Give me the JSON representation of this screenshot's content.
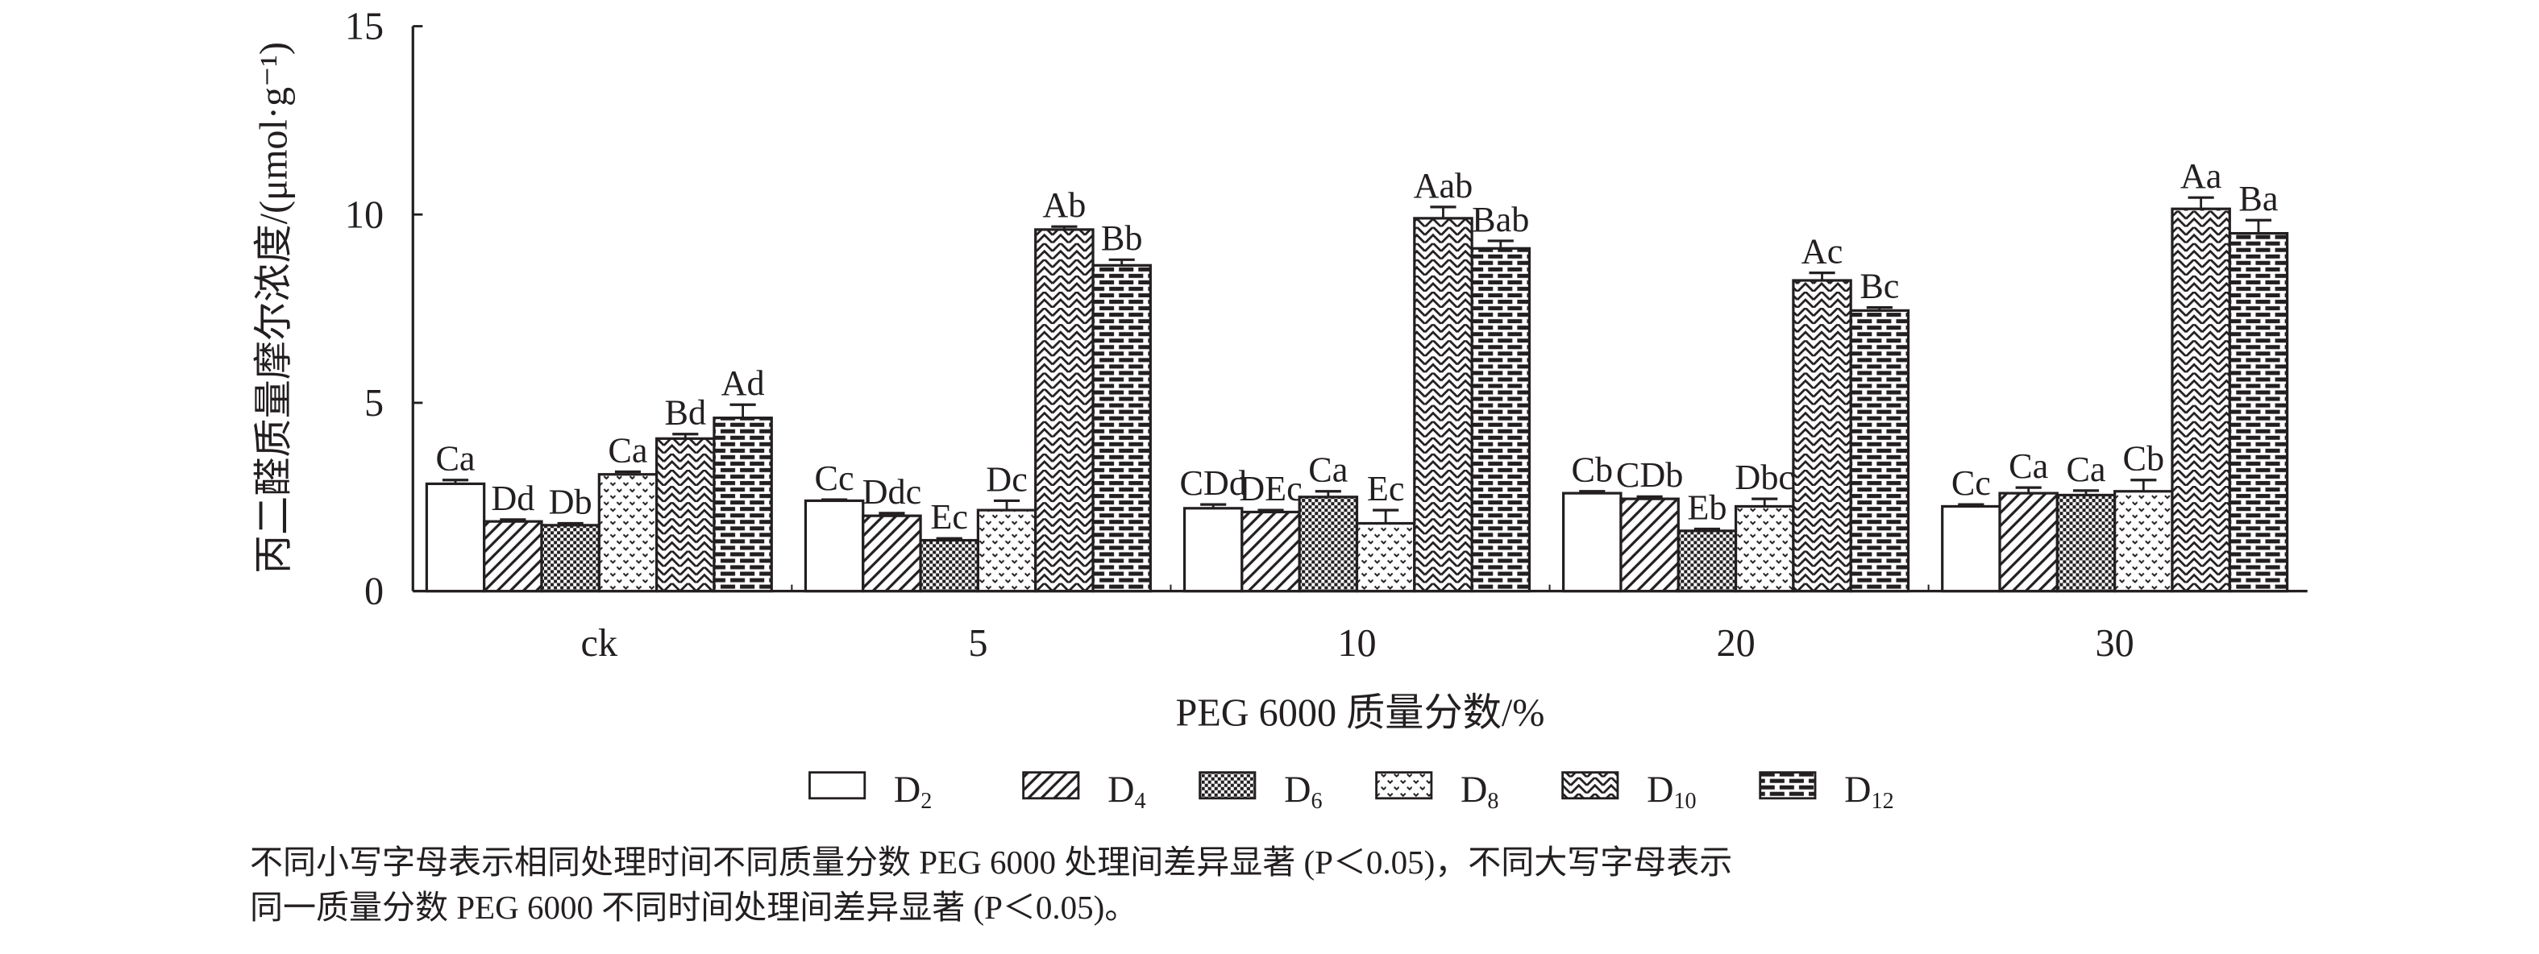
{
  "chart_data": {
    "type": "bar",
    "title": "",
    "xlabel": "PEG 6000 质量分数/%",
    "ylabel": "丙二醛质量摩尔浓度/(μmol·g⁻¹)",
    "ylim": [
      0,
      15
    ],
    "yticks": [
      "0",
      "5",
      "10",
      "15"
    ],
    "yticks_values": [
      0,
      5,
      10,
      15
    ],
    "grid": false,
    "legend_position": "bottom",
    "categories": [
      "ck",
      "5",
      "10",
      "20",
      "30"
    ],
    "series": [
      {
        "name": "D2",
        "base": "D",
        "sub": "2",
        "pattern": "open",
        "values": [
          2.85,
          2.4,
          2.2,
          2.6,
          2.25
        ],
        "errors": [
          0.1,
          0.03,
          0.1,
          0.05,
          0.05
        ],
        "labels": [
          "Ca",
          "Cc",
          "CDd",
          "Cb",
          "Cc"
        ]
      },
      {
        "name": "D4",
        "base": "D",
        "sub": "4",
        "pattern": "diagonal",
        "values": [
          1.85,
          2.0,
          2.1,
          2.45,
          2.6
        ],
        "errors": [
          0.05,
          0.07,
          0.05,
          0.06,
          0.15
        ],
        "labels": [
          "Dd",
          "Ddc",
          "DEc",
          "CDb",
          "Ca"
        ]
      },
      {
        "name": "D6",
        "base": "D",
        "sub": "6",
        "pattern": "checker",
        "values": [
          1.75,
          1.35,
          2.5,
          1.6,
          2.55
        ],
        "errors": [
          0.05,
          0.05,
          0.15,
          0.05,
          0.12
        ],
        "labels": [
          "Db",
          "Ec",
          "Ca",
          "Eb",
          "Ca"
        ]
      },
      {
        "name": "D8",
        "base": "D",
        "sub": "8",
        "pattern": "dots",
        "values": [
          3.1,
          2.15,
          1.8,
          2.25,
          2.65
        ],
        "errors": [
          0.07,
          0.25,
          0.35,
          0.2,
          0.3
        ],
        "labels": [
          "Ca",
          "Dc",
          "Ec",
          "Dbc",
          "Cb"
        ]
      },
      {
        "name": "D10",
        "base": "D",
        "sub": "10",
        "pattern": "zigzag",
        "values": [
          4.05,
          9.6,
          9.9,
          8.25,
          10.15
        ],
        "errors": [
          0.12,
          0.08,
          0.3,
          0.2,
          0.3
        ],
        "labels": [
          "Bd",
          "Ab",
          "Aab",
          "Ac",
          "Aa"
        ]
      },
      {
        "name": "D12",
        "base": "D",
        "sub": "12",
        "pattern": "brick",
        "values": [
          4.6,
          8.65,
          9.1,
          7.45,
          9.5
        ],
        "errors": [
          0.35,
          0.15,
          0.2,
          0.08,
          0.35
        ],
        "labels": [
          "Ad",
          "Bb",
          "Bab",
          "Bc",
          "Ba"
        ]
      }
    ]
  },
  "footnote": {
    "line1": "不同小写字母表示相同处理时间不同质量分数 PEG 6000 处理间差异显著 (P＜0.05)，不同大写字母表示",
    "line2": "同一质量分数 PEG 6000 不同时间处理间差异显著 (P＜0.05)。"
  }
}
